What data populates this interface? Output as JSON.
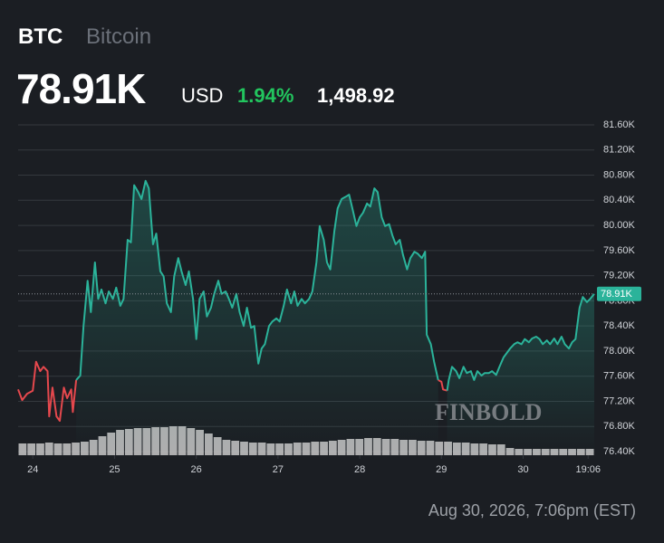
{
  "header": {
    "symbol": "BTC",
    "name": "Bitcoin",
    "price": "78.91K",
    "currency": "USD",
    "change_pct": "1.94%",
    "change": "1,498.92"
  },
  "chart_data": {
    "type": "line",
    "xlim": [
      23.82,
      30.87
    ],
    "xticks": [
      24,
      25,
      26,
      27,
      28,
      29,
      30,
      {
        "value": 30.795,
        "label": "19:06"
      }
    ],
    "ylim": [
      76.4,
      81.6
    ],
    "yticks": [
      {
        "value": 76.4,
        "label": "76.40K"
      },
      {
        "value": 76.8,
        "label": "76.80K"
      },
      {
        "value": 77.2,
        "label": "77.20K"
      },
      {
        "value": 77.6,
        "label": "77.60K"
      },
      {
        "value": 78.0,
        "label": "78.00K"
      },
      {
        "value": 78.4,
        "label": "78.40K"
      },
      {
        "value": 78.8,
        "label": "78.80K"
      },
      {
        "value": 79.2,
        "label": "79.20K"
      },
      {
        "value": 79.6,
        "label": "79.60K"
      },
      {
        "value": 80.0,
        "label": "80.00K"
      },
      {
        "value": 80.4,
        "label": "80.40K"
      },
      {
        "value": 80.8,
        "label": "80.80K"
      },
      {
        "value": 81.2,
        "label": "81.20K"
      },
      {
        "value": 81.6,
        "label": "81.60K"
      }
    ],
    "grid": true,
    "current_price": {
      "value": 78.91,
      "label": "78.91K",
      "color": "#2bb39a"
    },
    "series": [
      {
        "color": "#e5484d",
        "x": [
          23.82,
          23.87,
          23.93,
          24.0,
          24.04,
          24.09,
          24.13,
          24.18,
          24.2,
          24.24,
          24.29,
          24.33,
          24.38,
          24.42,
          24.47,
          24.49,
          24.53,
          null,
          28.96,
          29.0,
          29.02,
          29.07
        ],
        "values": [
          77.39,
          77.22,
          77.32,
          77.37,
          77.83,
          77.68,
          77.75,
          77.68,
          76.96,
          77.42,
          76.96,
          76.89,
          77.42,
          77.25,
          77.39,
          77.03,
          77.54,
          null,
          77.54,
          77.51,
          77.39,
          77.37
        ]
      },
      {
        "color": "#2bb39a",
        "x": [
          24.53,
          24.58,
          24.62,
          24.67,
          24.71,
          24.76,
          24.8,
          24.84,
          24.89,
          24.93,
          24.98,
          25.02,
          25.07,
          25.11,
          25.16,
          25.2,
          25.24,
          25.29,
          25.33,
          25.38,
          25.42,
          25.47,
          25.51,
          25.56,
          25.6,
          25.64,
          25.69,
          25.73,
          25.78,
          25.82,
          25.87,
          25.91,
          25.96,
          26.0,
          26.04,
          26.09,
          26.13,
          26.18,
          26.22,
          26.27,
          26.31,
          26.36,
          26.4,
          26.44,
          26.49,
          26.53,
          26.58,
          26.62,
          26.67,
          26.71,
          26.76,
          26.8,
          26.84,
          26.89,
          26.93,
          26.98,
          27.02,
          27.07,
          27.11,
          27.16,
          27.2,
          27.24,
          27.29,
          27.33,
          27.38,
          27.42,
          27.47,
          27.51,
          27.56,
          27.6,
          27.64,
          27.69,
          27.73,
          27.78,
          27.82,
          27.87,
          27.91,
          27.96,
          28.0,
          28.04,
          28.09,
          28.13,
          28.18,
          28.22,
          28.27,
          28.31,
          28.36,
          28.4,
          28.44,
          28.49,
          28.53,
          28.58,
          28.62,
          28.67,
          28.71,
          28.76,
          28.8,
          28.82,
          28.87,
          28.91,
          28.96,
          null,
          29.07,
          29.09,
          29.13,
          29.18,
          29.22,
          29.27,
          29.31,
          29.36,
          29.4,
          29.44,
          29.49,
          29.53,
          29.58,
          29.62,
          29.67,
          29.71,
          29.76,
          29.8,
          29.84,
          29.89,
          29.93,
          29.98,
          30.02,
          30.07,
          30.11,
          30.16,
          30.2,
          30.24,
          30.29,
          30.33,
          30.38,
          30.42,
          30.47,
          30.51,
          30.56,
          30.6,
          30.64,
          30.69,
          30.73,
          30.78,
          30.82,
          30.87
        ],
        "values": [
          77.54,
          77.61,
          78.4,
          79.12,
          78.62,
          79.41,
          78.83,
          78.98,
          78.76,
          78.95,
          78.83,
          79.01,
          78.72,
          78.83,
          79.77,
          79.73,
          80.64,
          80.53,
          80.42,
          80.71,
          80.59,
          79.7,
          79.87,
          79.27,
          79.19,
          78.76,
          78.62,
          79.19,
          79.48,
          79.27,
          79.05,
          79.27,
          78.83,
          78.19,
          78.83,
          78.95,
          78.55,
          78.69,
          78.91,
          79.12,
          78.91,
          78.95,
          78.83,
          78.69,
          78.91,
          78.62,
          78.4,
          78.69,
          78.37,
          78.4,
          77.8,
          78.04,
          78.11,
          78.4,
          78.47,
          78.52,
          78.47,
          78.72,
          78.98,
          78.76,
          78.95,
          78.72,
          78.83,
          78.76,
          78.83,
          78.95,
          79.41,
          79.99,
          79.77,
          79.41,
          79.3,
          79.91,
          80.27,
          80.42,
          80.45,
          80.49,
          80.27,
          79.99,
          80.13,
          80.2,
          80.35,
          80.3,
          80.59,
          80.53,
          80.13,
          79.99,
          80.02,
          79.84,
          79.7,
          79.77,
          79.53,
          79.3,
          79.48,
          79.58,
          79.55,
          79.48,
          79.58,
          78.26,
          78.11,
          77.83,
          77.54,
          null,
          77.37,
          77.54,
          77.75,
          77.68,
          77.57,
          77.75,
          77.65,
          77.68,
          77.54,
          77.68,
          77.61,
          77.65,
          77.65,
          77.68,
          77.62,
          77.75,
          77.9,
          77.97,
          78.04,
          78.11,
          78.14,
          78.11,
          78.19,
          78.14,
          78.2,
          78.23,
          78.19,
          78.11,
          78.17,
          78.11,
          78.2,
          78.11,
          78.23,
          78.11,
          78.04,
          78.14,
          78.19,
          78.69,
          78.86,
          78.78,
          78.83,
          78.91
        ]
      }
    ],
    "volume": {
      "color": "#c8c8c8",
      "values": [
        13,
        13,
        13,
        14,
        13,
        13,
        14,
        15,
        17,
        21,
        25,
        28,
        29,
        30,
        30,
        31,
        31,
        32,
        32,
        30,
        28,
        24,
        20,
        17,
        16,
        15,
        14,
        14,
        13,
        13,
        13,
        14,
        14,
        15,
        15,
        16,
        17,
        18,
        18,
        19,
        19,
        18,
        18,
        17,
        17,
        16,
        16,
        15,
        15,
        14,
        14,
        13,
        13,
        12,
        12,
        8,
        7,
        7,
        7,
        7,
        7,
        7,
        7,
        7,
        7
      ]
    },
    "watermark": "FINBOLD"
  },
  "footer": {
    "timestamp": "Aug 30, 2026, 7:06pm (EST)"
  }
}
